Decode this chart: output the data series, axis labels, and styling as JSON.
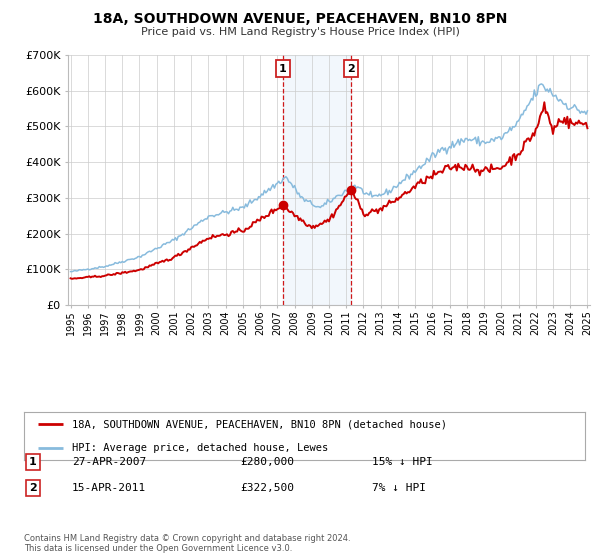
{
  "title": "18A, SOUTHDOWN AVENUE, PEACEHAVEN, BN10 8PN",
  "subtitle": "Price paid vs. HM Land Registry's House Price Index (HPI)",
  "legend_line1": "18A, SOUTHDOWN AVENUE, PEACEHAVEN, BN10 8PN (detached house)",
  "legend_line2": "HPI: Average price, detached house, Lewes",
  "property_color": "#cc0000",
  "hpi_color": "#88bbdd",
  "sale1_date": 2007.32,
  "sale1_price": 280000,
  "sale1_label": "1",
  "sale1_text": "27-APR-2007",
  "sale1_price_text": "£280,000",
  "sale1_hpi_text": "15% ↓ HPI",
  "sale2_date": 2011.29,
  "sale2_price": 322500,
  "sale2_label": "2",
  "sale2_text": "15-APR-2011",
  "sale2_price_text": "£322,500",
  "sale2_hpi_text": "7% ↓ HPI",
  "ylim_max": 700000,
  "yticks": [
    0,
    100000,
    200000,
    300000,
    400000,
    500000,
    600000,
    700000
  ],
  "ytick_labels": [
    "£0",
    "£100K",
    "£200K",
    "£300K",
    "£400K",
    "£500K",
    "£600K",
    "£700K"
  ],
  "background_color": "#ffffff",
  "grid_color": "#cccccc",
  "footnote": "Contains HM Land Registry data © Crown copyright and database right 2024.\nThis data is licensed under the Open Government Licence v3.0."
}
